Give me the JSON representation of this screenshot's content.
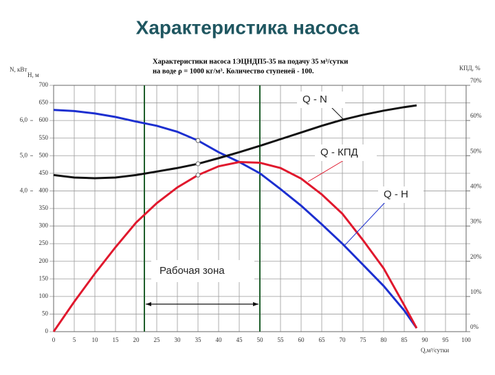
{
  "page_title": "Характеристика насоса",
  "chart_data": {
    "type": "line",
    "title_lines": [
      "Характеристики насоса 1ЭЦНДП5-35 на подачу 35 м³/сутки",
      "на воде  ρ = 1000 кг/м³. Количество ступеней - 100."
    ],
    "x_label": "Q,м³/сутки",
    "y_label": "Н, м",
    "n_label": "N, кВт",
    "y2_label": "КПД, %",
    "x": [
      0,
      5,
      10,
      15,
      20,
      25,
      30,
      35,
      40,
      45,
      50,
      55,
      60,
      65,
      70,
      75,
      80,
      85,
      88
    ],
    "xlim": [
      0,
      100
    ],
    "xticks": [
      0,
      5,
      10,
      15,
      20,
      25,
      30,
      35,
      40,
      45,
      50,
      55,
      60,
      65,
      70,
      75,
      80,
      85,
      90,
      95,
      100
    ],
    "ylim": [
      0,
      700
    ],
    "yticks": [
      0,
      50,
      100,
      150,
      200,
      250,
      300,
      350,
      400,
      450,
      500,
      550,
      600,
      650,
      700
    ],
    "nlim": [
      0,
      7
    ],
    "nticks": [
      {
        "value": 4,
        "label": "4,0"
      },
      {
        "value": 5,
        "label": "5,0"
      },
      {
        "value": 6,
        "label": "6,0"
      }
    ],
    "y2lim": [
      0,
      70
    ],
    "y2ticks": [
      {
        "value": 0,
        "label": "0%"
      },
      {
        "value": 10,
        "label": "10%"
      },
      {
        "value": 20,
        "label": "20%"
      },
      {
        "value": 30,
        "label": "30%"
      },
      {
        "value": 40,
        "label": "40%"
      },
      {
        "value": 50,
        "label": "50%"
      },
      {
        "value": 60,
        "label": "60%"
      },
      {
        "value": 70,
        "label": "70%"
      }
    ],
    "grid": true,
    "series": [
      {
        "name": "Q - H",
        "color": "#1c2fd0",
        "axis": "y",
        "values": [
          630,
          627,
          620,
          610,
          597,
          585,
          568,
          543,
          510,
          482,
          450,
          405,
          358,
          305,
          250,
          190,
          130,
          60,
          10
        ]
      },
      {
        "name": "Q - N",
        "color": "#111111",
        "axis": "n",
        "values": [
          4.45,
          4.38,
          4.36,
          4.38,
          4.45,
          4.55,
          4.65,
          4.77,
          4.93,
          5.1,
          5.28,
          5.47,
          5.66,
          5.85,
          6.02,
          6.16,
          6.28,
          6.38,
          6.43
        ]
      },
      {
        "name": "Q - КПД",
        "color": "#e0182d",
        "axis": "y2",
        "values": [
          0,
          8.5,
          16.5,
          24,
          31,
          36.5,
          41,
          44.5,
          47,
          48.2,
          48,
          46.5,
          43.5,
          39,
          33.5,
          26,
          18,
          7.5,
          1
        ]
      }
    ],
    "marked_x": 35,
    "working_zone": {
      "label": "Рабочая зона",
      "range": [
        22,
        50
      ]
    }
  }
}
